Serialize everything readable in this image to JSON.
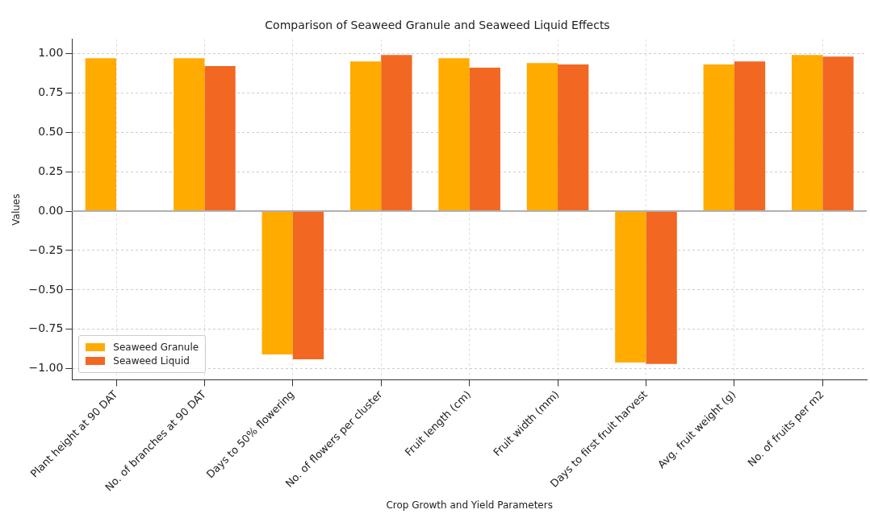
{
  "chart_data": {
    "type": "bar",
    "title": "Comparison of Seaweed Granule and Seaweed Liquid Effects",
    "xlabel": "Crop Growth and Yield Parameters",
    "ylabel": "Values",
    "categories": [
      "Plant height at 90 DAT",
      "No. of branches at 90 DAT",
      "Days to 50% flowering",
      "No. of flowers per cluster",
      "Fruit length (cm)",
      "Fruit width (mm)",
      "Days to first fruit harvest",
      "Avg. fruit weight (g)",
      "No. of fruits per m2"
    ],
    "series": [
      {
        "name": "Seaweed Granule",
        "color": "#ffab00",
        "values": [
          0.97,
          0.97,
          -0.91,
          0.95,
          0.97,
          0.94,
          -0.96,
          0.93,
          0.99
        ]
      },
      {
        "name": "Seaweed Liquid",
        "color": "#f26722",
        "values": [
          null,
          0.92,
          -0.94,
          0.99,
          0.91,
          0.93,
          -0.97,
          0.95,
          0.98
        ]
      }
    ],
    "ylim": [
      -1.07,
      1.09
    ],
    "yticks": [
      {
        "value": -1,
        "label": "−1.00"
      },
      {
        "value": -0.75,
        "label": "−0.75"
      },
      {
        "value": -0.5,
        "label": "−0.50"
      },
      {
        "value": -0.25,
        "label": "−0.25"
      },
      {
        "value": 0,
        "label": "0.00"
      },
      {
        "value": 0.25,
        "label": "0.25"
      },
      {
        "value": 0.5,
        "label": "0.50"
      },
      {
        "value": 0.75,
        "label": "0.75"
      },
      {
        "value": 1,
        "label": "1.00"
      }
    ],
    "ref_lines": [
      {
        "axis": "y",
        "value": 0,
        "color": "#b0b0b0"
      }
    ],
    "grid": true,
    "legend": "bottom left"
  }
}
